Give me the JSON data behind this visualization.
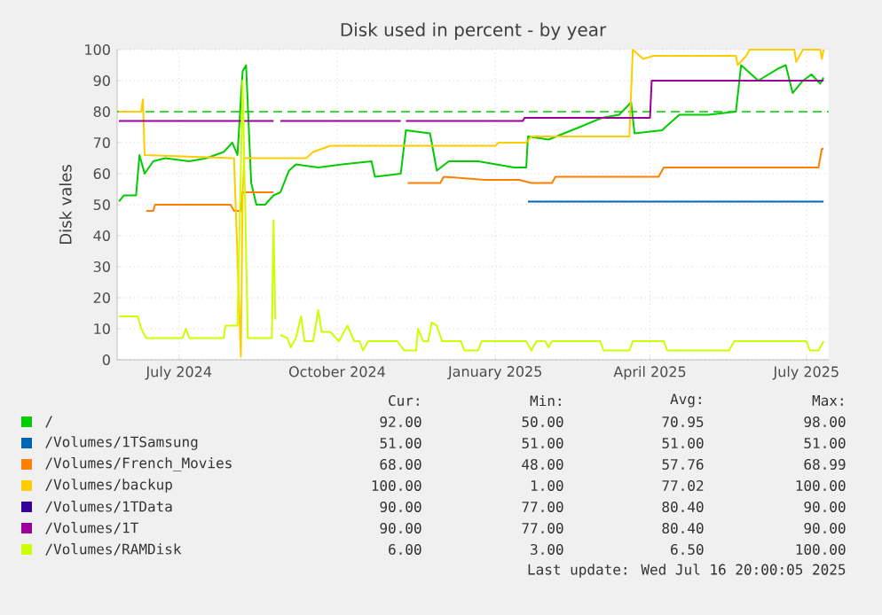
{
  "chart_data": {
    "type": "line",
    "title": "Disk used in percent - by year",
    "ylabel": "Disk vales",
    "xlim": [
      "2024-05-26",
      "2025-07-14"
    ],
    "xticks": [
      {
        "value": "2024-07-01",
        "label": "July 2024"
      },
      {
        "value": "2024-10-01",
        "label": "October 2024"
      },
      {
        "value": "2025-01-01",
        "label": "January 2025"
      },
      {
        "value": "2025-04-01",
        "label": "April 2025"
      },
      {
        "value": "2025-07-01",
        "label": "July 2025"
      }
    ],
    "ylim": [
      0,
      100
    ],
    "yticks": [
      0,
      10,
      20,
      30,
      40,
      50,
      60,
      70,
      80,
      90,
      100
    ],
    "grid": true,
    "legend": "bottom",
    "ref_lines": [
      {
        "axis": "y",
        "value": 80,
        "color": "#00cc00",
        "line_style": "dashed"
      }
    ],
    "series": [
      {
        "name": "/",
        "color": "#00cc00",
        "x": [
          "2024-05-27",
          "2024-05-30",
          "2024-06-06",
          "2024-06-08",
          "2024-06-11",
          "2024-06-16",
          "2024-06-23",
          "2024-07-07",
          "2024-07-17",
          "2024-07-27",
          "2024-08-01",
          "2024-08-04",
          "2024-08-07",
          "2024-08-09",
          "2024-08-12",
          "2024-08-15",
          "2024-08-20",
          "2024-08-25",
          "2024-08-29",
          "2024-09-03",
          "2024-09-07",
          "2024-09-20",
          "2024-10-04",
          "2024-10-21",
          "2024-10-23",
          "2024-11-07",
          "2024-11-10",
          "2024-11-24",
          "2024-11-28",
          "2024-12-05",
          "2024-12-22",
          "2025-01-12",
          "2025-01-19",
          "2025-01-20",
          "2025-02-01",
          "2025-02-19",
          "2025-03-04",
          "2025-03-14",
          "2025-03-21",
          "2025-03-23",
          "2025-04-08",
          "2025-04-18",
          "2025-05-05",
          "2025-05-21",
          "2025-05-24",
          "2025-06-03",
          "2025-06-15",
          "2025-06-19",
          "2025-06-23",
          "2025-06-29",
          "2025-07-04",
          "2025-07-09",
          "2025-07-11"
        ],
        "values": [
          51,
          53,
          53,
          66,
          60,
          64,
          65,
          64,
          65,
          67,
          70,
          66,
          93,
          95,
          57,
          50,
          50,
          53,
          54,
          61,
          63,
          62,
          63,
          64,
          59,
          60,
          74,
          73,
          61,
          64,
          64,
          62,
          62,
          72,
          71,
          75,
          78,
          79,
          83,
          73,
          74,
          79,
          79,
          80,
          95,
          90,
          94,
          95,
          86,
          90,
          92,
          89,
          91
        ]
      },
      {
        "name": "/Volumes/1TSamsung",
        "color": "#0066b3",
        "x": [
          "2025-01-20",
          "2025-07-11"
        ],
        "values": [
          51,
          51
        ]
      },
      {
        "name": "/Volumes/French_Movies",
        "color": "#ff8000",
        "x": [
          "2024-06-12",
          "2024-06-16",
          "2024-06-17",
          "2024-07-31",
          "2024-08-02",
          "2024-08-06",
          "2024-08-07",
          "2024-08-25",
          "2024-09-15",
          "2024-11-11",
          "2024-11-30",
          "2024-12-02",
          "2024-12-26",
          "2025-01-15",
          "2025-01-22",
          "2025-02-03",
          "2025-02-05",
          "2025-04-06",
          "2025-04-09",
          "2025-07-08",
          "2025-07-10",
          "2025-07-11"
        ],
        "values": [
          48,
          48,
          50,
          50,
          48,
          48,
          54,
          54,
          null,
          57,
          57,
          59,
          58,
          58,
          57,
          57,
          59,
          59,
          62,
          62,
          68,
          68
        ]
      },
      {
        "name": "/Volumes/backup",
        "color": "#ffcc00",
        "x": [
          "2024-05-27",
          "2024-06-09",
          "2024-06-10",
          "2024-06-11",
          "2024-08-02",
          "2024-08-06",
          "2024-08-07",
          "2024-08-08",
          "2024-09-13",
          "2024-09-17",
          "2024-09-27",
          "2024-12-22",
          "2025-01-01",
          "2025-01-03",
          "2025-01-19",
          "2025-01-22",
          "2025-03-20",
          "2025-03-22",
          "2025-03-28",
          "2025-04-03",
          "2025-05-21",
          "2025-05-22",
          "2025-05-27",
          "2025-05-29",
          "2025-06-24",
          "2025-06-25",
          "2025-06-29",
          "2025-07-09",
          "2025-07-10",
          "2025-07-11"
        ],
        "values": [
          80,
          80,
          84,
          66,
          65,
          1,
          54,
          65,
          65,
          67,
          69,
          69,
          69,
          70,
          70,
          72,
          72,
          100,
          97,
          98,
          98,
          95,
          98,
          100,
          100,
          96,
          100,
          100,
          97,
          100
        ]
      },
      {
        "name": "/Volumes/1TData",
        "color": "#330099"
      },
      {
        "name": "/Volumes/1T",
        "color": "#990099",
        "x": [
          "2024-05-27",
          "2024-08-25",
          "2024-08-27",
          "2024-08-29",
          "2024-11-07",
          "2024-11-08",
          "2024-11-10",
          "2025-01-17",
          "2025-01-18",
          "2025-04-01",
          "2025-04-02",
          "2025-07-11"
        ],
        "values": [
          77,
          77,
          null,
          77,
          77,
          null,
          77,
          77,
          78,
          78,
          90,
          90
        ]
      },
      {
        "name": "/Volumes/RAMDisk",
        "color": "#ccff00",
        "x": [
          "2024-05-27",
          "2024-06-07",
          "2024-06-09",
          "2024-06-12",
          "2024-07-03",
          "2024-07-05",
          "2024-07-07",
          "2024-07-27",
          "2024-07-28",
          "2024-08-04",
          "2024-08-06",
          "2024-08-07",
          "2024-08-10",
          "2024-08-24",
          "2024-08-25",
          "2024-08-26",
          "2024-08-28",
          "2024-08-29",
          "2024-09-02",
          "2024-09-04",
          "2024-09-07",
          "2024-09-10",
          "2024-09-12",
          "2024-09-17",
          "2024-09-20",
          "2024-09-22",
          "2024-09-27",
          "2024-10-02",
          "2024-10-07",
          "2024-10-11",
          "2024-10-14",
          "2024-10-16",
          "2024-10-19",
          "2024-11-05",
          "2024-11-09",
          "2024-11-16",
          "2024-11-17",
          "2024-11-20",
          "2024-11-23",
          "2024-11-25",
          "2024-11-28",
          "2024-12-01",
          "2024-12-12",
          "2024-12-14",
          "2024-12-22",
          "2024-12-24",
          "2025-01-19",
          "2025-01-22",
          "2025-01-25",
          "2025-01-30",
          "2025-02-01",
          "2025-02-03",
          "2025-03-03",
          "2025-03-05",
          "2025-03-20",
          "2025-03-22",
          "2025-04-09",
          "2025-04-11",
          "2025-05-17",
          "2025-05-20",
          "2025-07-01",
          "2025-07-03",
          "2025-07-08",
          "2025-07-11"
        ],
        "values": [
          14,
          14,
          10,
          7,
          7,
          10,
          7,
          7,
          11,
          11,
          62,
          90,
          7,
          7,
          45,
          13,
          null,
          8,
          7,
          4,
          7,
          14,
          6,
          6,
          16,
          9,
          9,
          6,
          11,
          6,
          6,
          3,
          6,
          6,
          3,
          3,
          10,
          6,
          6,
          12,
          11,
          6,
          6,
          3,
          3,
          6,
          6,
          3,
          6,
          6,
          4,
          6,
          6,
          3,
          3,
          6,
          6,
          3,
          3,
          6,
          6,
          3,
          3,
          6
        ]
      }
    ],
    "annotations": [
      "Cur:",
      "Min:",
      "Avg:",
      "Max:",
      "92.00",
      "50.00",
      "70.95",
      "98.00",
      "51.00",
      "51.00",
      "51.00",
      "51.00",
      "68.00",
      "48.00",
      "57.76",
      "68.99",
      "100.00",
      "1.00",
      "77.02",
      "100.00",
      "90.00",
      "77.00",
      "80.40",
      "90.00",
      "90.00",
      "77.00",
      "80.40",
      "90.00",
      "6.00",
      "3.00",
      "6.50",
      "100.00",
      "Last update: Wed Jul 16 20:00:05 2025"
    ]
  }
}
